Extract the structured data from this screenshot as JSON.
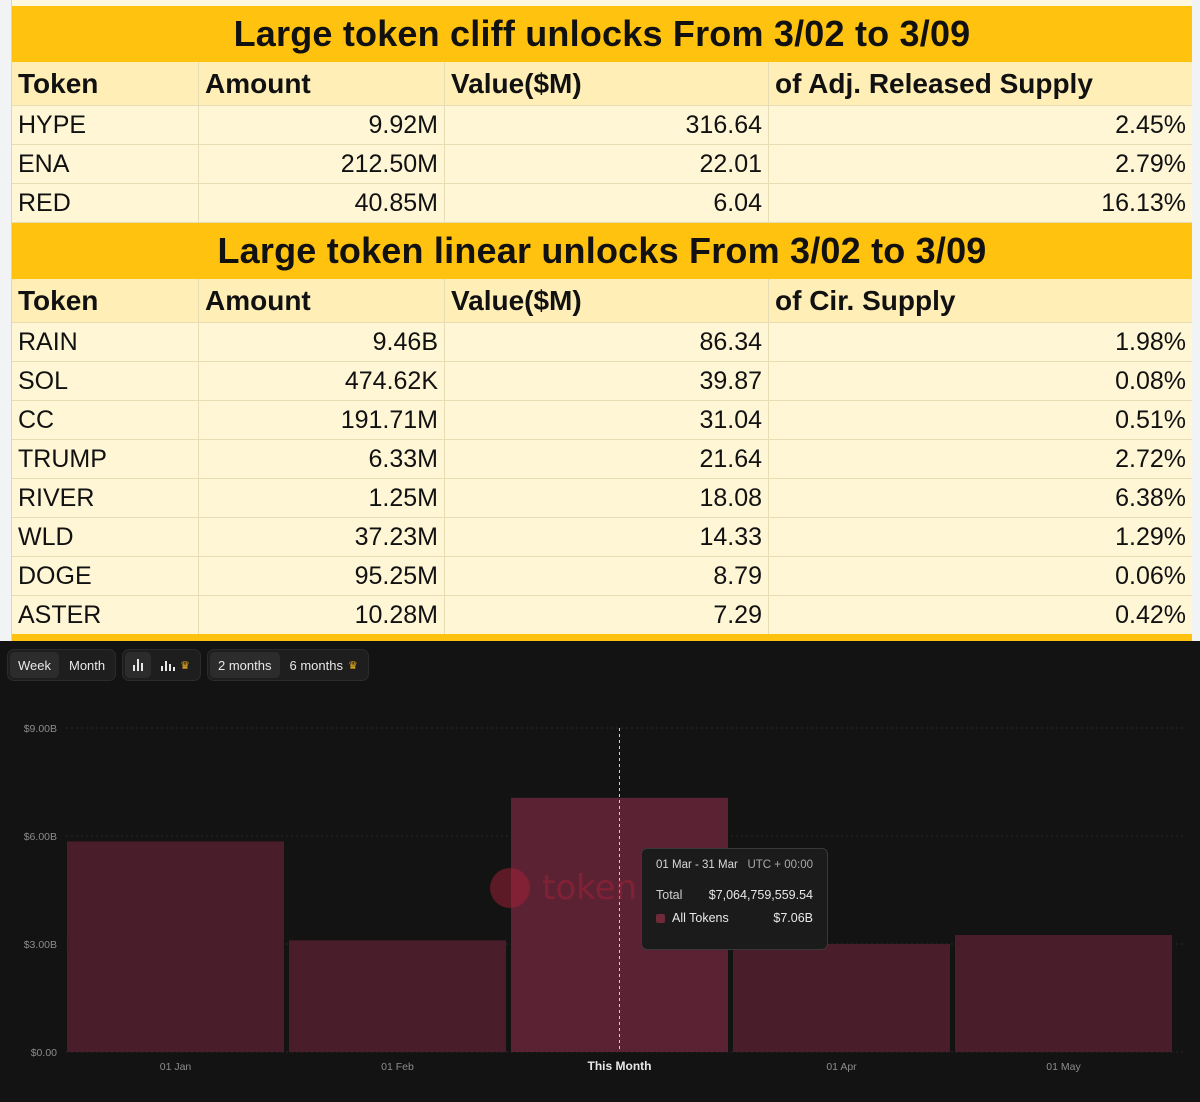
{
  "cliff_table": {
    "title": "Large token cliff unlocks From  3/02 to 3/09",
    "headers": [
      "Token",
      "Amount",
      "Value($M)",
      "of Adj. Released Supply"
    ],
    "rows": [
      [
        "HYPE",
        "9.92M",
        "316.64",
        "2.45%"
      ],
      [
        "ENA",
        "212.50M",
        "22.01",
        "2.79%"
      ],
      [
        "RED",
        "40.85M",
        "6.04",
        "16.13%"
      ]
    ]
  },
  "linear_table": {
    "title": "Large token linear unlocks From  3/02 to 3/09",
    "headers": [
      "Token",
      "Amount",
      "Value($M)",
      "of Cir. Supply"
    ],
    "rows": [
      [
        "RAIN",
        "9.46B",
        "86.34",
        "1.98%"
      ],
      [
        "SOL",
        "474.62K",
        "39.87",
        "0.08%"
      ],
      [
        "CC",
        "191.71M",
        "31.04",
        "0.51%"
      ],
      [
        "TRUMP",
        "6.33M",
        "21.64",
        "2.72%"
      ],
      [
        "RIVER",
        "1.25M",
        "18.08",
        "6.38%"
      ],
      [
        "WLD",
        "37.23M",
        "14.33",
        "1.29%"
      ],
      [
        "DOGE",
        "95.25M",
        "8.79",
        "0.06%"
      ],
      [
        "ASTER",
        "10.28M",
        "7.29",
        "0.42%"
      ]
    ]
  },
  "toolbar": {
    "period": [
      "Week",
      "Month"
    ],
    "range": [
      "2 months",
      "6 months"
    ]
  },
  "tooltip": {
    "period": "01 Mar - 31 Mar",
    "tz": "UTC + 00:00",
    "total_label": "Total",
    "total_value": "$7,064,759,559.54",
    "series_label": "All Tokens",
    "series_value": "$7.06B"
  },
  "watermark": "token",
  "colors": {
    "bar": "#4a1d2a",
    "bar_active": "#5a2232",
    "band": "#ffc20e",
    "swatch": "#6f2a3a"
  },
  "chart_data": {
    "type": "bar",
    "categories": [
      "01 Jan",
      "01 Feb",
      "This Month",
      "01 Apr",
      "01 May"
    ],
    "series": [
      {
        "values": [
          5.85,
          3.1,
          7.06,
          3.0,
          3.25
        ]
      }
    ],
    "unit": "B USD",
    "yticks": [
      "$0.00",
      "$3.00B",
      "$6.00B",
      "$9.00B"
    ],
    "ylim": [
      0,
      9
    ],
    "highlight_index": 2,
    "grid": true
  }
}
